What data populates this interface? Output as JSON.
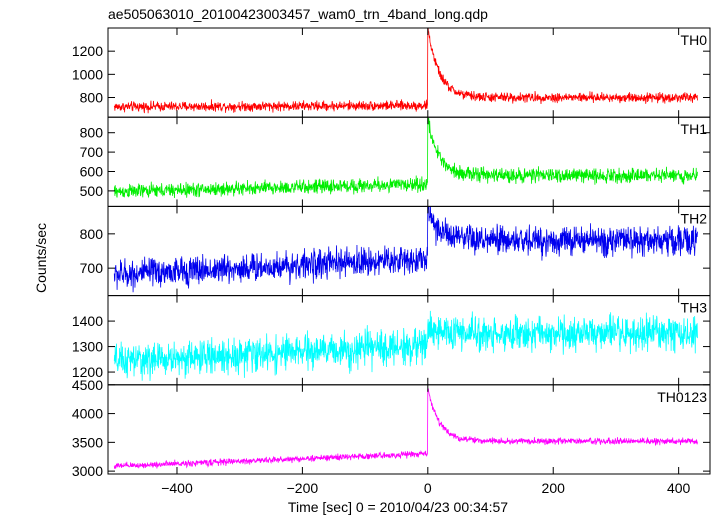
{
  "title": "ae505063010_20100423003457_wam0_trn_4band_long.qdp",
  "chart_data": {
    "type": "line",
    "title": "ae505063010_20100423003457_wam0_trn_4band_long.qdp",
    "xlabel": "Time [sec] 0 = 2010/04/23 00:34:57",
    "ylabel": "Counts/sec",
    "xlim": [
      -510,
      450
    ],
    "x_ticks": [
      "−400",
      "−200",
      "0",
      "200",
      "400"
    ],
    "x_tick_values": [
      -400,
      -200,
      0,
      200,
      400
    ],
    "grid": false,
    "legend": "none",
    "panels": [
      {
        "name": "TH0",
        "color": "#ff0000",
        "ylim": [
          630,
          1400
        ],
        "y_ticks": [
          800,
          1000,
          1200
        ],
        "y_tick_labels": [
          "800",
          "1000",
          "1200"
        ],
        "model": {
          "baseline_start": 720,
          "baseline_end": 740,
          "peak": 1400,
          "decay_to": 800,
          "noise": 35
        },
        "samples": [
          [
            -500,
            720
          ],
          [
            -300,
            730
          ],
          [
            -100,
            735
          ],
          [
            -5,
            760
          ],
          [
            0,
            1400
          ],
          [
            20,
            900
          ],
          [
            60,
            800
          ],
          [
            200,
            760
          ],
          [
            430,
            745
          ]
        ]
      },
      {
        "name": "TH1",
        "color": "#00ee00",
        "ylim": [
          420,
          880
        ],
        "y_ticks": [
          500,
          600,
          700,
          800
        ],
        "y_tick_labels": [
          "500",
          "600",
          "700",
          "800"
        ],
        "model": {
          "baseline_start": 495,
          "baseline_end": 570,
          "peak": 860,
          "decay_to": 580,
          "noise": 30
        },
        "samples": [
          [
            -500,
            495
          ],
          [
            -300,
            515
          ],
          [
            -100,
            540
          ],
          [
            -5,
            560
          ],
          [
            0,
            860
          ],
          [
            20,
            650
          ],
          [
            60,
            580
          ],
          [
            200,
            565
          ],
          [
            430,
            575
          ]
        ]
      },
      {
        "name": "TH2",
        "color": "#0000ee",
        "ylim": [
          620,
          880
        ],
        "y_ticks": [
          700,
          800
        ],
        "y_tick_labels": [
          "700",
          "800"
        ],
        "model": {
          "baseline_start": 680,
          "baseline_end": 770,
          "peak": 870,
          "decay_to": 780,
          "noise": 35
        },
        "samples": [
          [
            -500,
            680
          ],
          [
            -300,
            700
          ],
          [
            -100,
            735
          ],
          [
            -5,
            755
          ],
          [
            0,
            870
          ],
          [
            20,
            800
          ],
          [
            200,
            775
          ],
          [
            430,
            770
          ]
        ]
      },
      {
        "name": "TH3",
        "color": "#00ffff",
        "ylim": [
          1150,
          1500
        ],
        "y_ticks": [
          1200,
          1300,
          1400
        ],
        "y_tick_labels": [
          "1200",
          "1300",
          "1400"
        ],
        "model": {
          "baseline_start": 1240,
          "baseline_end": 1360,
          "peak": 1380,
          "decay_to": 1350,
          "noise": 55
        },
        "samples": [
          [
            -500,
            1240
          ],
          [
            -300,
            1275
          ],
          [
            -100,
            1320
          ],
          [
            0,
            1345
          ],
          [
            200,
            1350
          ],
          [
            430,
            1360
          ]
        ]
      },
      {
        "name": "TH0123",
        "color": "#ff00ff",
        "ylim": [
          2950,
          4500
        ],
        "y_ticks": [
          3000,
          3500,
          4000,
          4500
        ],
        "y_tick_labels": [
          "3000",
          "3500",
          "4000",
          "4500"
        ],
        "model": {
          "baseline_start": 3080,
          "baseline_end": 3500,
          "peak": 4450,
          "decay_to": 3520,
          "noise": 45
        },
        "samples": [
          [
            -500,
            3080
          ],
          [
            -300,
            3230
          ],
          [
            -100,
            3350
          ],
          [
            -5,
            3420
          ],
          [
            0,
            4450
          ],
          [
            20,
            3700
          ],
          [
            60,
            3520
          ],
          [
            200,
            3480
          ],
          [
            430,
            3500
          ]
        ]
      }
    ]
  }
}
